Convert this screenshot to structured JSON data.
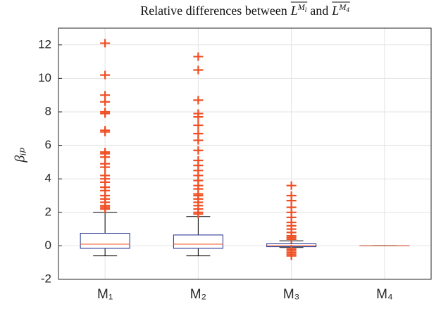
{
  "chart_data": {
    "type": "box",
    "title": [
      "Relative differences between",
      "L",
      "M",
      "l",
      "and",
      "L",
      "M",
      "4"
    ],
    "y_label": "βᵢₚ",
    "categories": [
      "M₁",
      "M₂",
      "M₃",
      "M₄"
    ],
    "boxes": [
      {
        "whislo": -0.6,
        "q1": -0.15,
        "med": 0.1,
        "q3": 0.75,
        "whishi": 2.0,
        "fliers": [
          12.1,
          10.2,
          9.0,
          8.6,
          8.0,
          7.9,
          6.9,
          6.8,
          5.6,
          5.5,
          5.3,
          4.9,
          4.7,
          4.2,
          4.0,
          3.8,
          3.5,
          3.3,
          3.0,
          2.8,
          2.6,
          2.4,
          2.3,
          2.2
        ]
      },
      {
        "whislo": -0.6,
        "q1": -0.15,
        "med": 0.1,
        "q3": 0.65,
        "whishi": 1.75,
        "fliers": [
          11.3,
          10.5,
          8.7,
          7.9,
          7.7,
          7.2,
          6.7,
          6.3,
          5.7,
          5.1,
          4.8,
          4.5,
          4.2,
          3.9,
          3.6,
          3.4,
          3.1,
          3.0,
          2.8,
          2.6,
          2.4,
          2.2,
          2.0,
          1.9
        ]
      },
      {
        "whislo": -0.1,
        "q1": -0.05,
        "med": 0.02,
        "q3": 0.12,
        "whishi": 0.3,
        "fliers": [
          3.6,
          3.0,
          2.7,
          2.3,
          2.0,
          1.7,
          1.4,
          1.2,
          1.0,
          0.8,
          0.6,
          0.5,
          0.4,
          -0.2,
          -0.3,
          -0.4,
          -0.5,
          -0.6
        ]
      },
      {
        "whislo": 0,
        "q1": 0,
        "med": 0,
        "q3": 0,
        "whishi": 0,
        "fliers": []
      }
    ],
    "box_color": "#1f2d8a",
    "median_color": "#f05a28",
    "flier_color": "#f04e23",
    "whisker_color": "#000000",
    "ylim": [
      -2,
      13
    ],
    "yticks": [
      -2,
      0,
      2,
      4,
      6,
      8,
      10,
      12
    ],
    "grid": true
  }
}
